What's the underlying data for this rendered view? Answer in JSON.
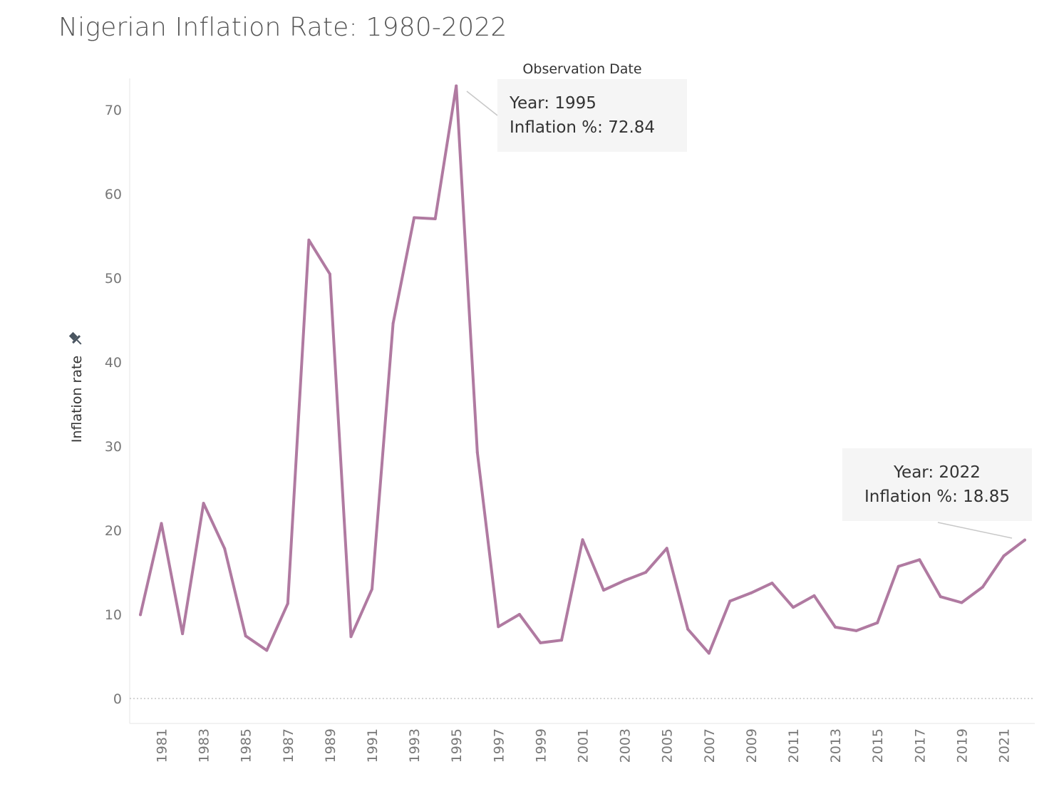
{
  "title": "Nigerian Inflation Rate: 1980-2022",
  "chart_data": {
    "type": "line",
    "title": "Nigerian Inflation Rate: 1980-2022",
    "xlabel": "Observation Date",
    "ylabel": "Inflation rate",
    "ylim": [
      -3,
      74
    ],
    "xlim": [
      1980,
      2022
    ],
    "yticks": [
      0,
      10,
      20,
      30,
      40,
      50,
      60,
      70
    ],
    "xticks": [
      "1981",
      "1983",
      "1985",
      "1987",
      "1989",
      "1991",
      "1993",
      "1995",
      "1997",
      "1999",
      "2001",
      "2003",
      "2005",
      "2007",
      "2009",
      "2011",
      "2013",
      "2015",
      "2017",
      "2019",
      "2021"
    ],
    "grid": false,
    "zero_line": "dotted",
    "line_color": "#b07aa1",
    "series": [
      {
        "x": [
          1980,
          1981,
          1982,
          1983,
          1984,
          1985,
          1986,
          1987,
          1988,
          1989,
          1990,
          1991,
          1992,
          1993,
          1994,
          1995,
          1996,
          1997,
          1998,
          1999,
          2000,
          2001,
          2002,
          2003,
          2004,
          2005,
          2006,
          2007,
          2008,
          2009,
          2010,
          2011,
          2012,
          2013,
          2014,
          2015,
          2016,
          2017,
          2018,
          2019,
          2020,
          2021,
          2022
        ],
        "values": [
          9.97,
          20.81,
          7.7,
          23.21,
          17.82,
          7.44,
          5.72,
          11.29,
          54.51,
          50.47,
          7.36,
          13.01,
          44.59,
          57.17,
          57.03,
          72.84,
          29.27,
          8.53,
          10.0,
          6.62,
          6.93,
          18.87,
          12.88,
          14.03,
          15.0,
          17.86,
          8.24,
          5.38,
          11.58,
          12.55,
          13.72,
          10.84,
          12.22,
          8.48,
          8.06,
          9.01,
          15.7,
          16.5,
          12.1,
          11.4,
          13.25,
          16.95,
          18.85
        ]
      }
    ],
    "annotations": [
      {
        "year": 1995,
        "line1": "Year: 1995",
        "line2": "Inflation %: 72.84",
        "anchor": "right-of-point"
      },
      {
        "year": 2022,
        "line1": "Year: 2022",
        "line2": "Inflation %: 18.85",
        "anchor": "above-left-of-point"
      }
    ],
    "pin_icon": "pin-icon"
  }
}
